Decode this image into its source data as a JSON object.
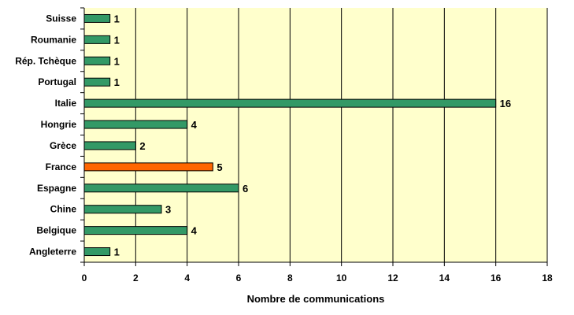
{
  "chart_data": {
    "type": "bar",
    "orientation": "horizontal",
    "categories": [
      "Suisse",
      "Roumanie",
      "Rép. Tchèque",
      "Portugal",
      "Italie",
      "Hongrie",
      "Grèce",
      "France",
      "Espagne",
      "Chine",
      "Belgique",
      "Angleterre"
    ],
    "values": [
      1,
      1,
      1,
      1,
      16,
      4,
      2,
      5,
      6,
      3,
      4,
      1
    ],
    "title": "",
    "xlabel": "Nombre de communications",
    "ylabel": "",
    "xlim": [
      0,
      18
    ],
    "xticks": [
      0,
      2,
      4,
      6,
      8,
      10,
      12,
      14,
      16,
      18
    ],
    "grid": "vertical",
    "legend": "none",
    "highlight_category": "France",
    "colors": {
      "plot_background": "#FFFFCC",
      "bar_default": "#339966",
      "bar_highlight": "#FF6600",
      "gridline": "#000000"
    }
  }
}
